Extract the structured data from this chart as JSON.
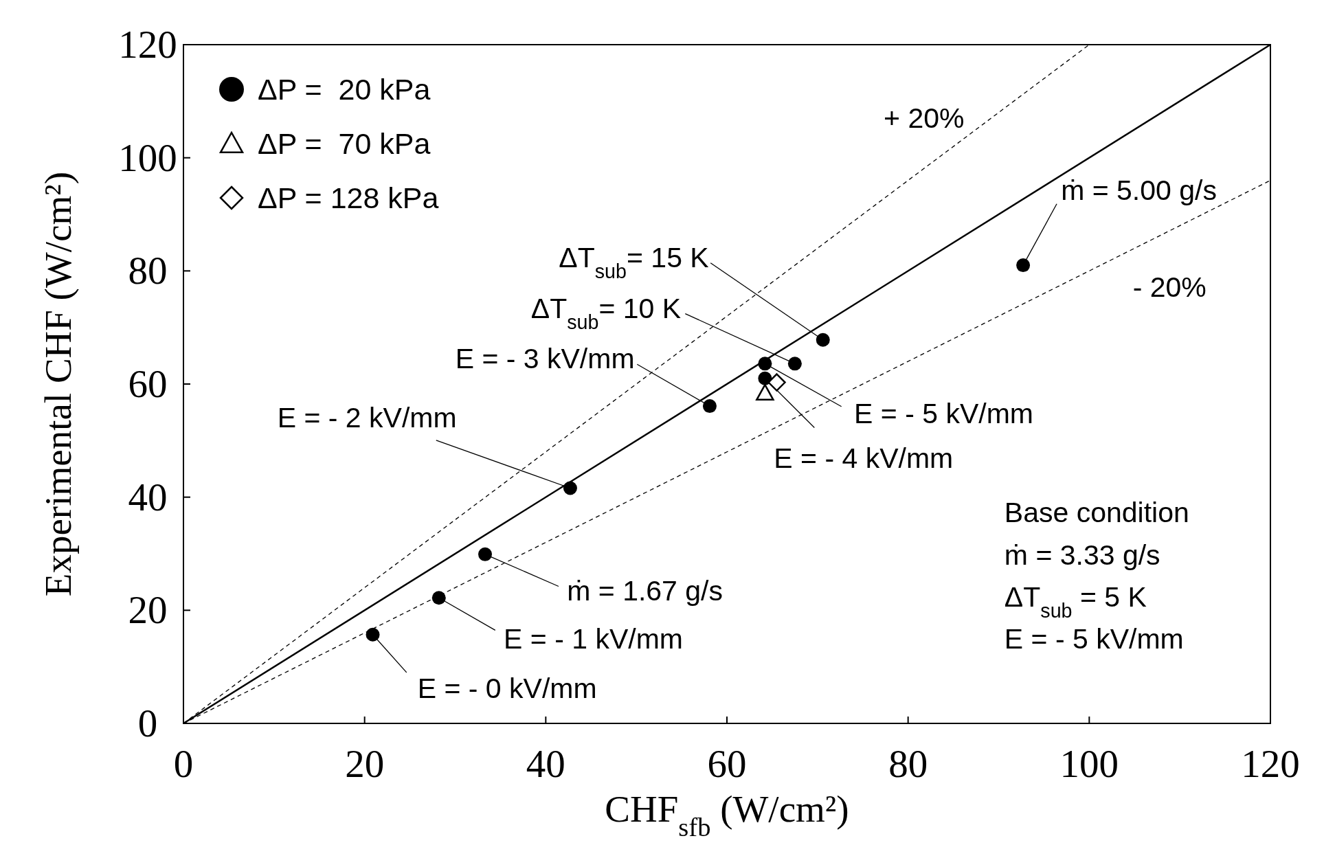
{
  "chart_data": {
    "type": "scatter",
    "xlabel": "CHF$_{sfb}$ (W/cm²)",
    "ylabel": "Experimental CHF (W/cm²)",
    "xlim": [
      0,
      120
    ],
    "ylim": [
      0,
      120
    ],
    "xticks": [
      0,
      20,
      40,
      60,
      80,
      100,
      120
    ],
    "yticks": [
      0,
      20,
      40,
      60,
      80,
      100,
      120
    ],
    "grid": false,
    "legend": "top left",
    "series": [
      {
        "type": "line",
        "color": "#000000",
        "line_style": "solid",
        "marker": "none",
        "x": [
          0,
          120
        ],
        "values": [
          0,
          120
        ]
      },
      {
        "type": "line",
        "color": "#000000",
        "line_style": "dashed",
        "marker": "none",
        "x": [
          0,
          100
        ],
        "values": [
          0,
          120
        ]
      },
      {
        "type": "line",
        "color": "#000000",
        "line_style": "dashed",
        "marker": "none",
        "x": [
          0,
          120
        ],
        "values": [
          0,
          96
        ]
      },
      {
        "name": "ΔP =  20 kPa",
        "color": "#000000",
        "marker": "circle",
        "x": [
          20.9,
          28.2,
          33.3,
          42.7,
          58.1,
          64.2,
          64.2,
          67.5,
          70.6,
          92.7
        ],
        "values": [
          15.7,
          22.2,
          29.9,
          41.6,
          56.1,
          63.6,
          61.0,
          63.6,
          67.8,
          81.0
        ]
      },
      {
        "name": "ΔP =  70 kPa",
        "color": "#000000",
        "marker": "triangle",
        "x": [
          64.2
        ],
        "values": [
          58.4
        ]
      },
      {
        "name": "ΔP = 128 kPa",
        "color": "#000000",
        "marker": "diamond",
        "x": [
          65.5
        ],
        "values": [
          60.3
        ]
      }
    ],
    "annotations": [
      {
        "text": "ṁ = 5.00 g/s",
        "x": 92.7,
        "y": 81.0
      },
      {
        "text": "ΔT$_{sub}$= 15 K",
        "x": 70.6,
        "y": 67.8
      },
      {
        "text": "ΔT$_{sub}$= 10 K",
        "x": 67.5,
        "y": 63.6
      },
      {
        "text": "E = - 3 kV/mm",
        "x": 58.1,
        "y": 56.1
      },
      {
        "text": "E = - 2 kV/mm",
        "x": 42.7,
        "y": 41.6
      },
      {
        "text": "E = - 5 kV/mm",
        "x": 64.2,
        "y": 63.6
      },
      {
        "text": "E = - 4 kV/mm",
        "x": 64.2,
        "y": 61.0
      },
      {
        "text": "ṁ = 1.67 g/s",
        "x": 33.3,
        "y": 29.9
      },
      {
        "text": "E = - 1 kV/mm",
        "x": 28.2,
        "y": 22.2
      },
      {
        "text": "E = - 0 kV/mm",
        "x": 20.9,
        "y": 15.7
      },
      "+ 20%",
      "- 20%",
      "Base condition",
      "ṁ = 3.33 g/s",
      "ΔT$_{sub}$ = 5 K",
      "E = - 5 kV/mm"
    ]
  }
}
